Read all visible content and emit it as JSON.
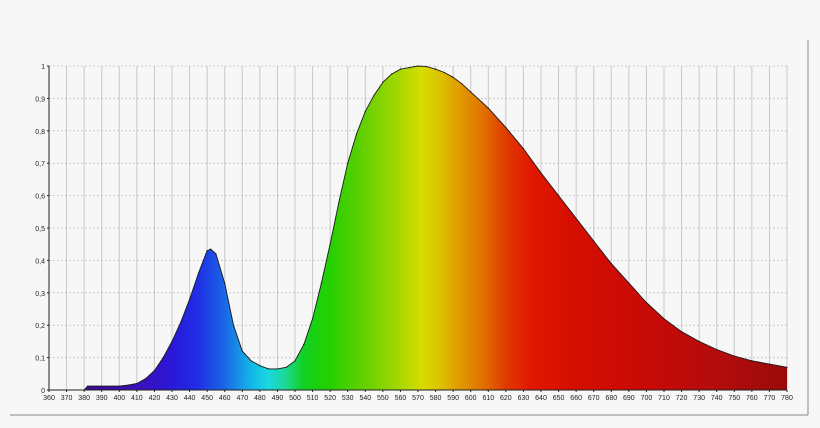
{
  "chart_data": {
    "type": "area",
    "title": "",
    "xlabel": "",
    "ylabel": "",
    "xlim": [
      360,
      780
    ],
    "ylim": [
      0,
      1
    ],
    "grid": true,
    "x_ticks": [
      360,
      370,
      380,
      390,
      400,
      410,
      420,
      430,
      440,
      450,
      460,
      470,
      480,
      490,
      500,
      510,
      520,
      530,
      540,
      550,
      560,
      570,
      580,
      590,
      600,
      610,
      620,
      630,
      640,
      650,
      660,
      670,
      680,
      690,
      700,
      710,
      720,
      730,
      740,
      750,
      760,
      770,
      780
    ],
    "y_tick_labels": [
      "0",
      "0,1",
      "0,2",
      "0,3",
      "0,4",
      "0,5",
      "0,6",
      "0,7",
      "0,8",
      "0,9",
      "1"
    ],
    "y_ticks": [
      0,
      0.1,
      0.2,
      0.3,
      0.4,
      0.5,
      0.6,
      0.7,
      0.8,
      0.9,
      1
    ],
    "fill": "spectral color gradient",
    "series": [
      {
        "x": [
          380,
          382,
          390,
          400,
          405,
          410,
          415,
          420,
          425,
          430,
          435,
          440,
          445,
          450,
          452,
          455,
          460,
          465,
          470,
          475,
          480,
          485,
          490,
          495,
          500,
          505,
          510,
          515,
          520,
          525,
          530,
          535,
          540,
          545,
          550,
          555,
          560,
          565,
          570,
          575,
          580,
          585,
          590,
          595,
          600,
          610,
          620,
          630,
          640,
          650,
          660,
          670,
          680,
          690,
          700,
          710,
          720,
          730,
          740,
          750,
          760,
          770,
          780
        ],
        "y": [
          0,
          0.012,
          0.012,
          0.012,
          0.015,
          0.02,
          0.035,
          0.06,
          0.1,
          0.15,
          0.21,
          0.28,
          0.36,
          0.43,
          0.435,
          0.42,
          0.33,
          0.2,
          0.12,
          0.09,
          0.075,
          0.065,
          0.065,
          0.07,
          0.09,
          0.14,
          0.22,
          0.33,
          0.45,
          0.58,
          0.7,
          0.79,
          0.86,
          0.91,
          0.95,
          0.975,
          0.99,
          0.995,
          1.0,
          0.998,
          0.99,
          0.98,
          0.965,
          0.945,
          0.92,
          0.87,
          0.81,
          0.745,
          0.67,
          0.6,
          0.53,
          0.46,
          0.39,
          0.33,
          0.27,
          0.22,
          0.18,
          0.15,
          0.125,
          0.105,
          0.09,
          0.08,
          0.07
        ]
      }
    ]
  }
}
